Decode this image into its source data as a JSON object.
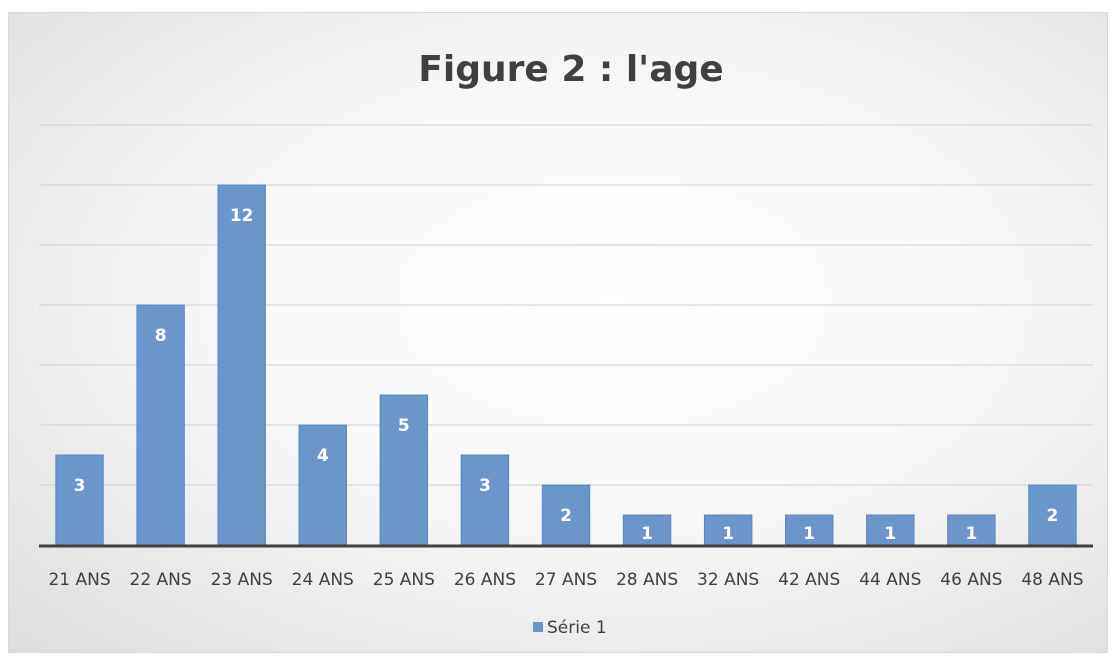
{
  "chart_data": {
    "type": "bar",
    "title": "Figure 2 : l'age",
    "categories": [
      "21 ANS",
      "22 ANS",
      "23 ANS",
      "24 ANS",
      "25 ANS",
      "26 ANS",
      "27 ANS",
      "28 ANS",
      "32 ANS",
      "42 ANS",
      "44 ANS",
      "46 ANS",
      "48 ANS"
    ],
    "series": [
      {
        "name": "Série 1",
        "values": [
          3,
          8,
          12,
          4,
          5,
          3,
          2,
          1,
          1,
          1,
          1,
          1,
          2
        ]
      }
    ],
    "ylim": [
      0,
      14
    ],
    "grid": true,
    "legend": "bottom",
    "colors": {
      "bar": "#6b96cb",
      "bar_edge": "#5a86c0",
      "grid": "#d0d0d0",
      "axis": "#404040"
    }
  }
}
